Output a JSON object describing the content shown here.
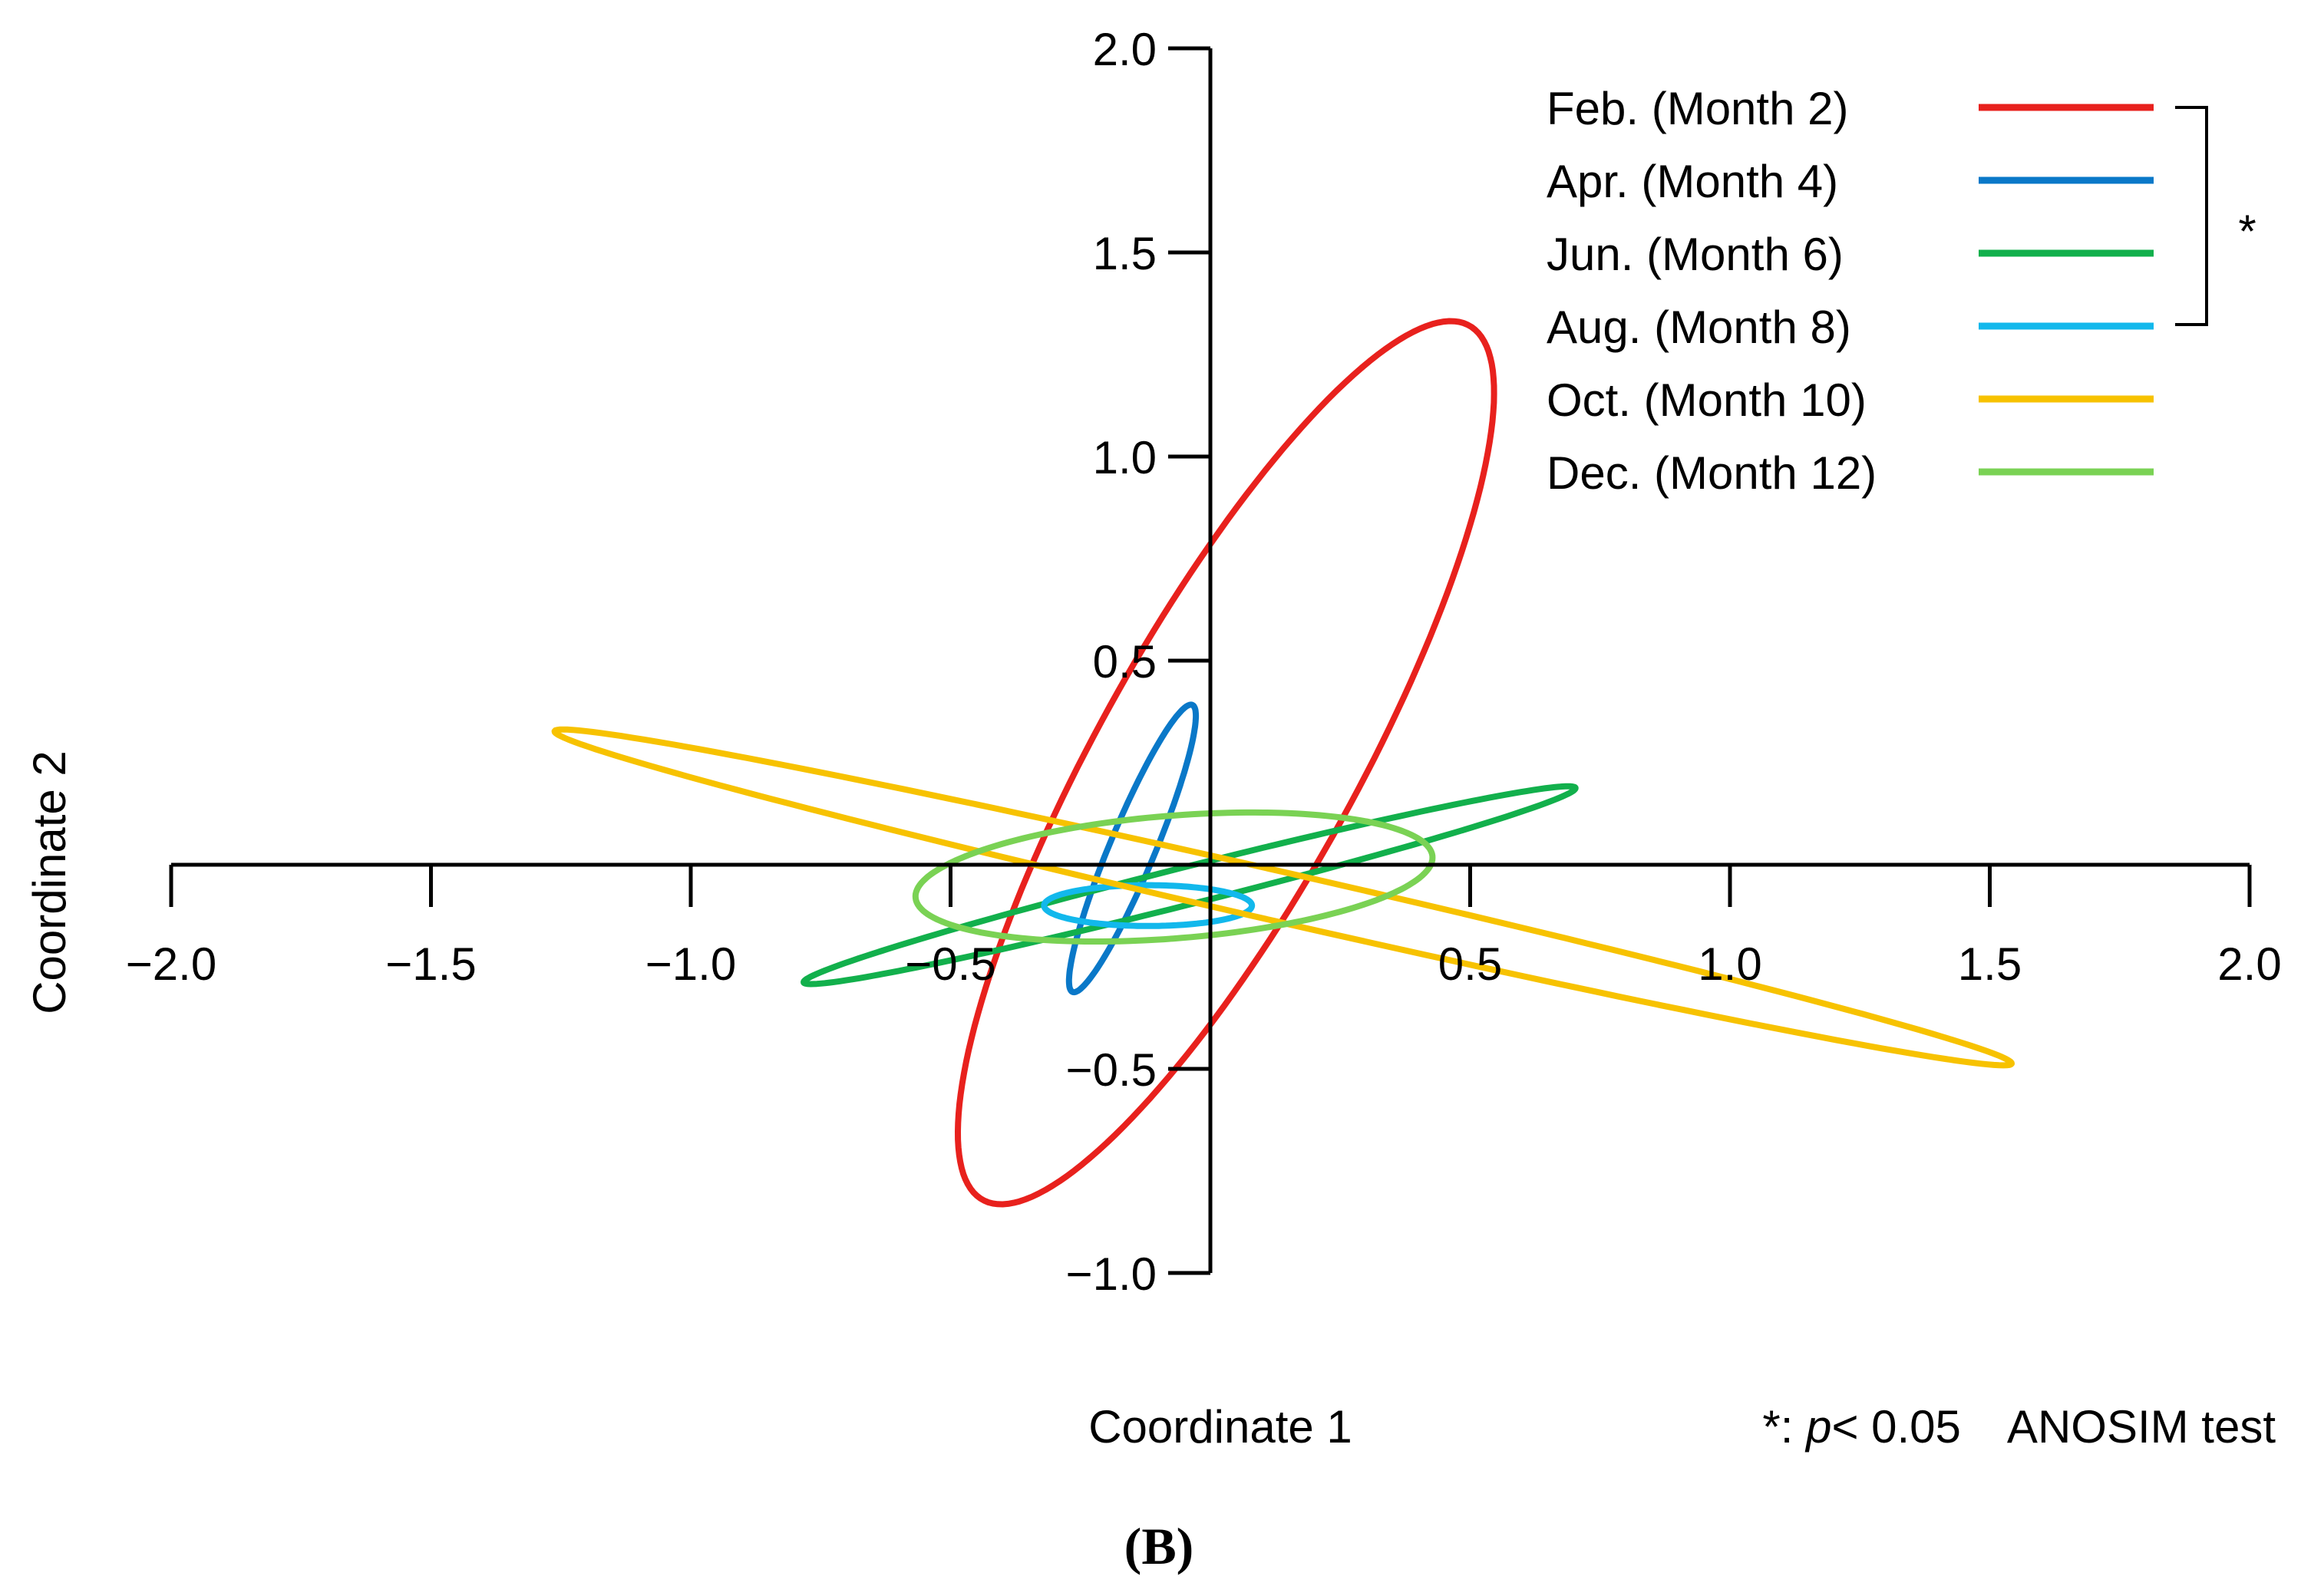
{
  "chart_data": {
    "type": "scatter",
    "subtype": "confidence-ellipses",
    "xlabel": "Coordinate 1",
    "ylabel": "Coordinate 2",
    "xlim": [
      -2.0,
      2.0
    ],
    "ylim": [
      -1.0,
      2.0
    ],
    "x_ticks": [
      -2.0,
      -1.5,
      -1.0,
      -0.5,
      0.5,
      1.0,
      1.5,
      2.0
    ],
    "x_tick_labels": [
      "−2.0",
      "−1.5",
      "−1.0",
      "−0.5",
      "0.5",
      "1.0",
      "1.5",
      "2.0"
    ],
    "y_ticks": [
      2.0,
      1.5,
      1.0,
      0.5,
      -0.5,
      -1.0
    ],
    "y_tick_labels": [
      "2.0",
      "1.5",
      "1.0",
      "0.5",
      "−0.5",
      "−1.0"
    ],
    "axes_through_origin": true,
    "grid": false,
    "legend_position": "top-right",
    "series": [
      {
        "name": "Feb. (Month 2)",
        "color": "#e8211d",
        "center": [
          0.03,
          0.25
        ],
        "semi_major": 1.17,
        "semi_minor": 0.26,
        "angle_deg": 67
      },
      {
        "name": "Apr. (Month 4)",
        "color": "#0a78c8",
        "center": [
          -0.15,
          0.04
        ],
        "semi_major": 0.37,
        "semi_minor": 0.045,
        "angle_deg": 72
      },
      {
        "name": "Jun. (Month 6)",
        "color": "#12b04c",
        "center": [
          -0.04,
          -0.05
        ],
        "semi_major": 0.78,
        "semi_minor": 0.045,
        "angle_deg": 17.8
      },
      {
        "name": "Aug. (Month 8)",
        "color": "#12b8ec",
        "center": [
          -0.12,
          -0.1
        ],
        "semi_major": 0.2,
        "semi_minor": 0.05,
        "angle_deg": 0
      },
      {
        "name": "Oct. (Month 10)",
        "color": "#f7c200",
        "center": [
          0.14,
          -0.08
        ],
        "semi_major": 1.46,
        "semi_minor": 0.06,
        "angle_deg": -16.2
      },
      {
        "name": "Dec. (Month 12)",
        "color": "#7ad254",
        "center": [
          -0.07,
          -0.03
        ],
        "semi_major": 0.5,
        "semi_minor": 0.15,
        "angle_deg": 6
      }
    ],
    "significance_bracket": {
      "from": "Feb. (Month 2)",
      "to": "Aug. (Month 8)",
      "marker": "*"
    },
    "annotation": {
      "prefix": "*: ",
      "p": "p",
      "suffix": "< 0.05 ANOSIM test"
    },
    "panel_label": "(B)"
  }
}
